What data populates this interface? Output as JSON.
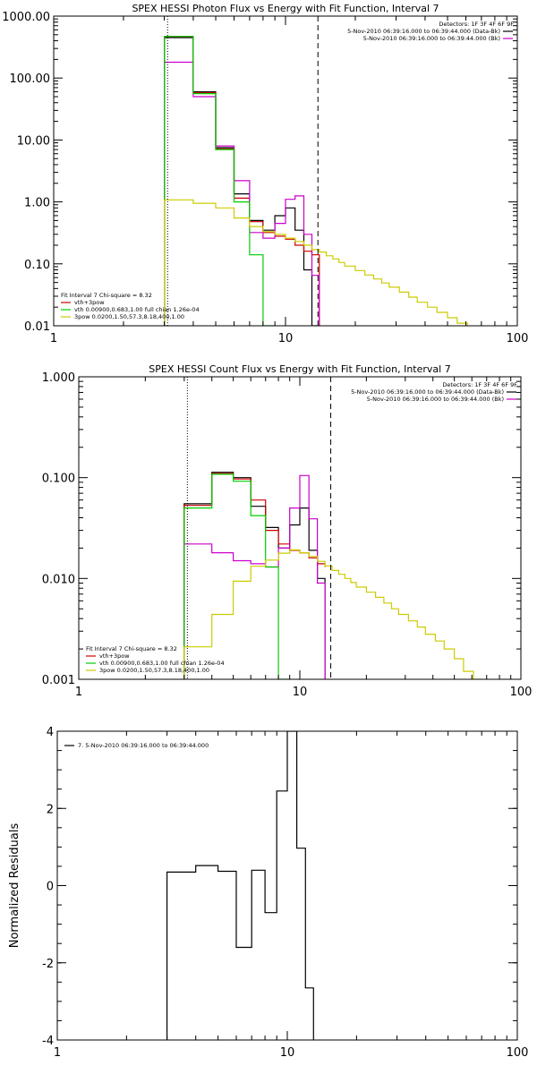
{
  "chart_data": [
    {
      "id": "photon",
      "type": "line",
      "title": "SPEX HESSI Photon Flux vs Energy with Fit Function, Interval 7",
      "xscale": "log",
      "yscale": "log",
      "xlim": [
        1,
        100
      ],
      "ylim": [
        0.01,
        1000
      ],
      "xticks": [
        {
          "v": 1,
          "label": "1"
        },
        {
          "v": 10,
          "label": "10"
        },
        {
          "v": 100,
          "label": "100"
        }
      ],
      "yticks": [
        {
          "v": 0.01,
          "label": "0.01"
        },
        {
          "v": 0.1,
          "label": "0.10"
        },
        {
          "v": 1,
          "label": "1.00"
        },
        {
          "v": 10,
          "label": "10.00"
        },
        {
          "v": 100,
          "label": "100.00"
        },
        {
          "v": 1000,
          "label": "1000.00"
        }
      ],
      "vlines": [
        {
          "x": 3.1,
          "style": "dotted"
        },
        {
          "x": 13.8,
          "style": "dashed"
        }
      ],
      "legend_right": {
        "position": "top-right",
        "header": "Detectors: 1F 3F 4F 6F 9F",
        "entries": [
          {
            "label": "5-Nov-2010 06:39:16.000 to 06:39:44.000 (Data-Bk)",
            "color": "#000000"
          },
          {
            "label": "5-Nov-2010 06:39:16.000 to 06:39:44.000 (Bk)",
            "color": "#cc00cc"
          }
        ]
      },
      "legend_left": {
        "position": "bottom-left",
        "header": "Fit Interval 7    Chi-square = 8.32",
        "entries": [
          {
            "label": "vth+3pow",
            "color": "#cc0000"
          },
          {
            "label": "vth 0.00900,0.683,1.00   full chian 1.26e-04",
            "color": "#00cc00"
          },
          {
            "label": "3pow 0.0200,1.50,57.3,8.18,400,1.00",
            "color": "#cccc00"
          }
        ]
      },
      "series": [
        {
          "name": "Data-Bk",
          "color": "#000000",
          "edges": [
            3.0,
            4.0,
            5.0,
            6.0,
            7.0,
            8.0,
            9.0,
            10.0,
            11.0,
            12.0,
            13.0,
            14.0
          ],
          "values": [
            450,
            60,
            7.5,
            1.35,
            0.5,
            0.35,
            0.6,
            0.8,
            0.35,
            0.08,
            0.01
          ]
        },
        {
          "name": "vth+3pow",
          "color": "#cc0000",
          "edges": [
            3.0,
            4.0,
            5.0,
            6.0,
            7.0,
            8.0,
            9.0,
            10.0,
            11.0,
            12.0,
            13.0,
            14.0
          ],
          "values": [
            470,
            58,
            7.2,
            1.15,
            0.48,
            0.32,
            0.28,
            0.25,
            0.2,
            0.16,
            0.14
          ]
        },
        {
          "name": "Bk",
          "color": "#cc00cc",
          "edges": [
            3.0,
            4.0,
            5.0,
            6.0,
            7.0,
            8.0,
            9.0,
            10.0,
            11.0,
            12.0,
            13.0,
            14.0
          ],
          "values": [
            180,
            50,
            8,
            2.2,
            0.32,
            0.26,
            0.45,
            1.1,
            1.25,
            0.3,
            0.065
          ]
        },
        {
          "name": "vth",
          "color": "#00cc00",
          "edges": [
            3.0,
            4.0,
            5.0,
            6.0,
            7.0,
            8.0,
            9.0
          ],
          "values": [
            470,
            56,
            7.0,
            1.0,
            0.14,
            0.01
          ]
        },
        {
          "name": "3pow",
          "color": "#cccc00",
          "edges": [
            3.0,
            4.0,
            5.0,
            6.0,
            7.0,
            8.0,
            9.0,
            10.0,
            11.0,
            12.0,
            13.0,
            14.0,
            15.0,
            16.0,
            17.0,
            18.0,
            20.0,
            22.0,
            24.0,
            26.0,
            28.0,
            31.0,
            34.0,
            37.0,
            41.0,
            45.0,
            50.0,
            55.0,
            61.0
          ],
          "values": [
            1.08,
            0.95,
            0.8,
            0.55,
            0.4,
            0.33,
            0.3,
            0.26,
            0.23,
            0.2,
            0.17,
            0.155,
            0.135,
            0.12,
            0.105,
            0.092,
            0.078,
            0.066,
            0.057,
            0.049,
            0.042,
            0.035,
            0.029,
            0.024,
            0.02,
            0.0165,
            0.0135,
            0.011
          ]
        }
      ]
    },
    {
      "id": "count",
      "type": "line",
      "title": "SPEX HESSI Count Flux vs Energy with Fit Function, Interval 7",
      "xscale": "log",
      "yscale": "log",
      "xlim": [
        1,
        100
      ],
      "ylim": [
        0.001,
        1
      ],
      "xticks": [
        {
          "v": 1,
          "label": "1"
        },
        {
          "v": 10,
          "label": "10"
        },
        {
          "v": 100,
          "label": "100"
        }
      ],
      "yticks": [
        {
          "v": 0.001,
          "label": "0.001"
        },
        {
          "v": 0.01,
          "label": "0.010"
        },
        {
          "v": 0.1,
          "label": "0.100"
        },
        {
          "v": 1,
          "label": "1.000"
        }
      ],
      "vlines": [
        {
          "x": 3.1,
          "style": "dotted"
        },
        {
          "x": 13.8,
          "style": "dashed"
        }
      ],
      "legend_right": {
        "position": "top-right",
        "header": "Detectors: 1F 3F 4F 6F 9F",
        "entries": [
          {
            "label": "5-Nov-2010 06:39:16.000 to 06:39:44.000 (Data-Bk)",
            "color": "#000000"
          },
          {
            "label": "5-Nov-2010 06:39:16.000 to 06:39:44.000 (Bk)",
            "color": "#cc00cc"
          }
        ]
      },
      "legend_left": {
        "position": "bottom-left",
        "header": "Fit Interval 7    Chi-square = 8.32",
        "entries": [
          {
            "label": "vth+3pow",
            "color": "#cc0000"
          },
          {
            "label": "vth 0.00900,0.683,1.00   full chian 1.26e-04",
            "color": "#00cc00"
          },
          {
            "label": "3pow 0.0200,1.50,57.3,8.18,400,1.00",
            "color": "#cccc00"
          }
        ]
      },
      "series": [
        {
          "name": "Data-Bk",
          "color": "#000000",
          "edges": [
            3.0,
            4.0,
            5.0,
            6.0,
            7.0,
            8.0,
            9.0,
            10.0,
            11.0,
            12.0,
            13.0
          ],
          "values": [
            0.055,
            0.113,
            0.1,
            0.052,
            0.032,
            0.02,
            0.034,
            0.05,
            0.019,
            0.01
          ]
        },
        {
          "name": "vth+3pow",
          "color": "#cc0000",
          "edges": [
            3.0,
            4.0,
            5.0,
            6.0,
            7.0,
            8.0,
            9.0,
            10.0,
            11.0,
            12.0,
            13.0
          ],
          "values": [
            0.053,
            0.11,
            0.097,
            0.06,
            0.03,
            0.022,
            0.019,
            0.018,
            0.016,
            0.014,
            0.013
          ]
        },
        {
          "name": "Bk",
          "color": "#cc00cc",
          "edges": [
            3.0,
            4.0,
            5.0,
            6.0,
            7.0,
            8.0,
            9.0,
            10.0,
            11.0,
            12.0,
            13.0
          ],
          "values": [
            0.022,
            0.018,
            0.015,
            0.014,
            0.013,
            0.02,
            0.05,
            0.105,
            0.039,
            0.009
          ]
        },
        {
          "name": "vth",
          "color": "#00cc00",
          "edges": [
            3.0,
            4.0,
            5.0,
            6.0,
            7.0,
            8.0,
            9.0
          ],
          "values": [
            0.05,
            0.108,
            0.092,
            0.042,
            0.013,
            0.001
          ]
        },
        {
          "name": "3pow",
          "color": "#cccc00",
          "edges": [
            3.0,
            4.0,
            5.0,
            6.0,
            7.0,
            8.0,
            9.0,
            10.0,
            11.0,
            12.0,
            13.0,
            14.0,
            15.0,
            16.0,
            17.0,
            18.0,
            20.0,
            22.0,
            24.0,
            26.0,
            28.0,
            31.0,
            34.0,
            37.0,
            41.0,
            45.0,
            50.0,
            55.0,
            61.0,
            67.0
          ],
          "values": [
            0.0021,
            0.0044,
            0.0094,
            0.0132,
            0.0152,
            0.0178,
            0.0192,
            0.018,
            0.0165,
            0.0148,
            0.0133,
            0.012,
            0.011,
            0.01,
            0.0091,
            0.0082,
            0.0073,
            0.0065,
            0.0057,
            0.005,
            0.0044,
            0.0038,
            0.0033,
            0.0028,
            0.0024,
            0.002,
            0.0016,
            0.0012,
            0.0009
          ]
        }
      ]
    },
    {
      "id": "resid",
      "type": "line",
      "title": "",
      "xscale": "log",
      "yscale": "linear",
      "xlim": [
        1,
        100
      ],
      "ylim": [
        -4,
        4
      ],
      "ylabel": "Normalized Residuals",
      "xticks": [
        {
          "v": 1,
          "label": "1"
        },
        {
          "v": 10,
          "label": "10"
        },
        {
          "v": 100,
          "label": "100"
        }
      ],
      "yticks": [
        {
          "v": -4,
          "label": "-4"
        },
        {
          "v": -2,
          "label": "-2"
        },
        {
          "v": 0,
          "label": "0"
        },
        {
          "v": 2,
          "label": "2"
        },
        {
          "v": 4,
          "label": "4"
        }
      ],
      "legend_left": {
        "position": "top-left",
        "header": "",
        "entries": [
          {
            "label": "7.  5-Nov-2010 06:39:16.000 to 06:39:44.000",
            "color": "#000000"
          }
        ]
      },
      "series": [
        {
          "name": "Residuals",
          "color": "#000000",
          "edges": [
            3.0,
            4.0,
            5.0,
            6.0,
            7.0,
            8.0,
            9.0,
            10.0,
            11.0,
            12.0,
            13.0
          ],
          "values": [
            0.35,
            0.52,
            0.37,
            -1.6,
            0.4,
            -0.7,
            2.45,
            4.0,
            0.97,
            -2.65
          ],
          "start_from": -4
        }
      ]
    }
  ]
}
